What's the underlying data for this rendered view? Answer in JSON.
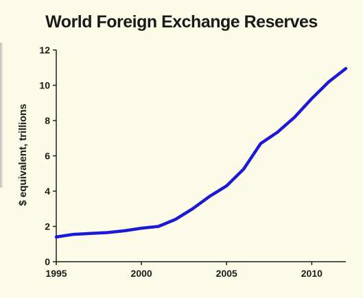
{
  "chart_data": {
    "type": "line",
    "title": "World Foreign Exchange Reserves",
    "xlabel": "",
    "ylabel": "$ equivalent, trillions",
    "xlim": [
      1995,
      2012
    ],
    "ylim": [
      0,
      12
    ],
    "x_ticks": [
      1995,
      2000,
      2005,
      2010
    ],
    "y_ticks": [
      0,
      2,
      4,
      6,
      8,
      10,
      12
    ],
    "grid": false,
    "legend": "none",
    "series": [
      {
        "color": "#1a1ad6",
        "x": [
          1995,
          1996,
          1997,
          1998,
          1999,
          2000,
          2001,
          2002,
          2003,
          2004,
          2005,
          2006,
          2007,
          2008,
          2009,
          2010,
          2011,
          2012
        ],
        "y": [
          1.4,
          1.55,
          1.6,
          1.65,
          1.75,
          1.9,
          2.0,
          2.4,
          3.0,
          3.7,
          4.3,
          5.25,
          6.7,
          7.35,
          8.2,
          9.25,
          10.2,
          10.95
        ]
      }
    ]
  }
}
